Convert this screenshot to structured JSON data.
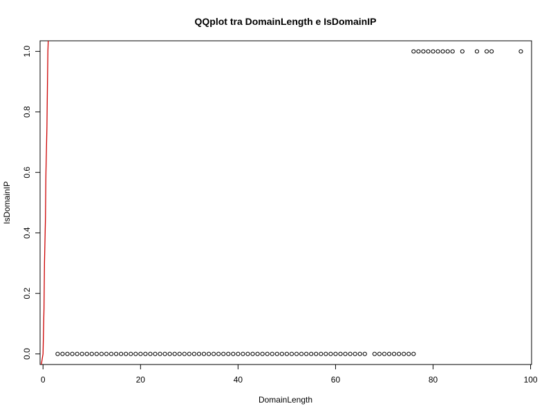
{
  "chart_data": {
    "type": "scatter",
    "title": "QQplot tra DomainLength e IsDomainIP",
    "xlabel": "DomainLength",
    "ylabel": "IsDomainIP",
    "xlim": [
      -0.6,
      100.2
    ],
    "ylim": [
      -0.035,
      1.035
    ],
    "x_ticks": [
      0,
      20,
      40,
      60,
      80,
      100
    ],
    "x_tick_labels": [
      "0",
      "20",
      "40",
      "60",
      "80",
      "100"
    ],
    "y_ticks": [
      0.0,
      0.2,
      0.4,
      0.6,
      0.8,
      1.0
    ],
    "y_tick_labels": [
      "0.0",
      "0.2",
      "0.4",
      "0.6",
      "0.8",
      "1.0"
    ],
    "grid": false,
    "point_color": "#000000",
    "line_color": "#cc0000",
    "points": [
      [
        3,
        0
      ],
      [
        4,
        0
      ],
      [
        5,
        0
      ],
      [
        6,
        0
      ],
      [
        7,
        0
      ],
      [
        8,
        0
      ],
      [
        9,
        0
      ],
      [
        10,
        0
      ],
      [
        11,
        0
      ],
      [
        12,
        0
      ],
      [
        13,
        0
      ],
      [
        14,
        0
      ],
      [
        15,
        0
      ],
      [
        16,
        0
      ],
      [
        17,
        0
      ],
      [
        18,
        0
      ],
      [
        19,
        0
      ],
      [
        20,
        0
      ],
      [
        21,
        0
      ],
      [
        22,
        0
      ],
      [
        23,
        0
      ],
      [
        24,
        0
      ],
      [
        25,
        0
      ],
      [
        26,
        0
      ],
      [
        27,
        0
      ],
      [
        28,
        0
      ],
      [
        29,
        0
      ],
      [
        30,
        0
      ],
      [
        31,
        0
      ],
      [
        32,
        0
      ],
      [
        33,
        0
      ],
      [
        34,
        0
      ],
      [
        35,
        0
      ],
      [
        36,
        0
      ],
      [
        37,
        0
      ],
      [
        38,
        0
      ],
      [
        39,
        0
      ],
      [
        40,
        0
      ],
      [
        41,
        0
      ],
      [
        42,
        0
      ],
      [
        43,
        0
      ],
      [
        44,
        0
      ],
      [
        45,
        0
      ],
      [
        46,
        0
      ],
      [
        47,
        0
      ],
      [
        48,
        0
      ],
      [
        49,
        0
      ],
      [
        50,
        0
      ],
      [
        51,
        0
      ],
      [
        52,
        0
      ],
      [
        53,
        0
      ],
      [
        54,
        0
      ],
      [
        55,
        0
      ],
      [
        56,
        0
      ],
      [
        57,
        0
      ],
      [
        58,
        0
      ],
      [
        59,
        0
      ],
      [
        60,
        0
      ],
      [
        61,
        0
      ],
      [
        62,
        0
      ],
      [
        63,
        0
      ],
      [
        64,
        0
      ],
      [
        65,
        0
      ],
      [
        66,
        0
      ],
      [
        68,
        0
      ],
      [
        69,
        0
      ],
      [
        70,
        0
      ],
      [
        71,
        0
      ],
      [
        72,
        0
      ],
      [
        73,
        0
      ],
      [
        74,
        0
      ],
      [
        75,
        0
      ],
      [
        76,
        0
      ],
      [
        76,
        1
      ],
      [
        77,
        1
      ],
      [
        78,
        1
      ],
      [
        79,
        1
      ],
      [
        80,
        1
      ],
      [
        81,
        1
      ],
      [
        82,
        1
      ],
      [
        83,
        1
      ],
      [
        84,
        1
      ],
      [
        86,
        1
      ],
      [
        89,
        1
      ],
      [
        91,
        1
      ],
      [
        92,
        1
      ],
      [
        98,
        1
      ]
    ],
    "line": {
      "x": [
        -0.5,
        0.0,
        0.2,
        0.3,
        0.5,
        0.6,
        0.8,
        0.9,
        1.0,
        1.1
      ],
      "y": [
        -0.05,
        0.0,
        0.15,
        0.3,
        0.45,
        0.6,
        0.75,
        0.88,
        1.0,
        1.05
      ]
    }
  }
}
